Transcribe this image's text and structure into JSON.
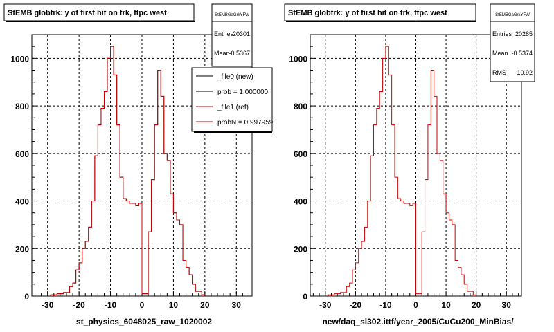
{
  "chart_data": [
    {
      "type": "histogram-step",
      "title": "StEMB globtrk: y of first hit on trk, ftpc west",
      "xlabel": "st_physics_6048025_raw_1020002",
      "ylabel": "",
      "xlim": [
        -35,
        35
      ],
      "ylim": [
        0,
        1100
      ],
      "xticks": [
        -30,
        -20,
        -10,
        0,
        10,
        20,
        30
      ],
      "yticks": [
        0,
        200,
        400,
        600,
        800,
        1000
      ],
      "grid": true,
      "bin_start": -35,
      "bin_width": 1,
      "series": [
        {
          "name": "_file0 (new)",
          "color": "#000000",
          "values": [
            0,
            0,
            0,
            0,
            0,
            0,
            5,
            5,
            10,
            10,
            15,
            15,
            40,
            55,
            110,
            140,
            200,
            230,
            290,
            400,
            590,
            720,
            790,
            860,
            1000,
            1050,
            930,
            720,
            500,
            410,
            400,
            390,
            390,
            380,
            390,
            10,
            10,
            270,
            490,
            720,
            950,
            840,
            600,
            570,
            430,
            350,
            320,
            300,
            150,
            120,
            90,
            50,
            20,
            20,
            5,
            0,
            0,
            0,
            0,
            0,
            0,
            0,
            0,
            0,
            0,
            0,
            0,
            0,
            0,
            0
          ]
        },
        {
          "name": "_file1 (ref)",
          "color": "#cc0000",
          "values": [
            0,
            0,
            0,
            0,
            0,
            0,
            5,
            5,
            10,
            10,
            15,
            15,
            40,
            55,
            110,
            140,
            200,
            230,
            290,
            400,
            590,
            720,
            790,
            860,
            1000,
            1050,
            930,
            720,
            500,
            410,
            400,
            390,
            390,
            380,
            390,
            10,
            10,
            270,
            490,
            720,
            950,
            840,
            600,
            570,
            430,
            350,
            320,
            300,
            150,
            120,
            90,
            50,
            20,
            20,
            5,
            0,
            0,
            0,
            0,
            0,
            0,
            0,
            0,
            0,
            0,
            0,
            0,
            0,
            0,
            0
          ]
        }
      ],
      "stats": {
        "name": "StEMBGaGrkYFW",
        "entries": "20301",
        "mean": "-0.5367"
      },
      "legend": {
        "placement": "top-right",
        "items": [
          {
            "label": "_file0 (new)",
            "color": "#000000"
          },
          {
            "label": "prob = 1.000000",
            "color": "#000000"
          },
          {
            "label": "_file1 (ref)",
            "color": "#cc0000"
          },
          {
            "label": "probN = 0.997959",
            "color": "#cc0000"
          }
        ]
      }
    },
    {
      "type": "histogram-step",
      "title": "StEMB globtrk: y of first hit on trk, ftpc west",
      "xlabel": "new/daq_sl302.ittf/year_2005/CuCu200_MinBias/",
      "ylabel": "",
      "xlim": [
        -35,
        35
      ],
      "ylim": [
        0,
        1100
      ],
      "xticks": [
        -30,
        -20,
        -10,
        0,
        10,
        20,
        30
      ],
      "yticks": [
        0,
        200,
        400,
        600,
        800,
        1000
      ],
      "grid": true,
      "bin_start": -35,
      "bin_width": 1,
      "series": [
        {
          "name": "",
          "color": "#cc0000",
          "values": [
            0,
            0,
            0,
            0,
            0,
            0,
            5,
            5,
            10,
            10,
            15,
            15,
            40,
            55,
            110,
            140,
            200,
            230,
            290,
            400,
            590,
            720,
            790,
            860,
            1000,
            1050,
            930,
            720,
            500,
            410,
            400,
            390,
            390,
            380,
            390,
            10,
            10,
            270,
            490,
            720,
            950,
            840,
            600,
            570,
            430,
            350,
            320,
            300,
            150,
            120,
            90,
            50,
            20,
            20,
            5,
            0,
            0,
            0,
            0,
            0,
            0,
            0,
            0,
            0,
            0,
            0,
            0,
            0,
            0,
            0
          ]
        }
      ],
      "stats": {
        "name": "StEMBGaGrkYFW",
        "entries": "20285",
        "mean": "-0.5374",
        "rms": "10.92"
      }
    }
  ],
  "stats_labels": {
    "entries": "Entries",
    "mean": "Mean",
    "rms": "RMS"
  },
  "colors": {
    "frame": "#000000",
    "grid": "#000000",
    "background": "#ffffff"
  }
}
